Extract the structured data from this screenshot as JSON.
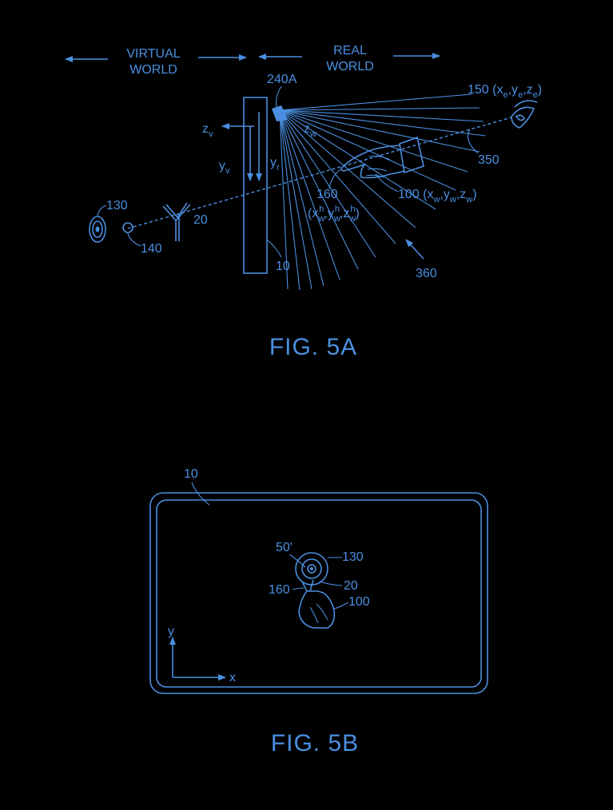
{
  "fig5a": {
    "caption": "FIG. 5A",
    "virtual_world_line1": "VIRTUAL",
    "virtual_world_line2": "WORLD",
    "real_world_line1": "REAL",
    "real_world_line2": "WORLD",
    "ref_240a": "240A",
    "ref_150": "150",
    "eye_coord_open": "(x",
    "eye_sub_e": "e",
    "eye_y": ",y",
    "eye_z": ",z",
    "eye_close": ")",
    "ref_350": "350",
    "ref_360": "360",
    "ref_100": "100",
    "hand_coord_open": "(x",
    "sub_w": "w",
    "hand_y": ",y",
    "hand_z": ",z",
    "hand_close": ")",
    "ref_160": "160",
    "tip_open": "(x",
    "sup_h": "h",
    "tip_y": ",y",
    "tip_z": ",z",
    "tip_close": ")",
    "axis_zv": "z",
    "sub_v": "v",
    "axis_yv": "y",
    "axis_yr": "y",
    "sub_r": "r",
    "axis_zw": "z",
    "ref_130": "130",
    "ref_140": "140",
    "ref_20": "20",
    "ref_10": "10"
  },
  "fig5b": {
    "caption": "FIG. 5B",
    "ref_10": "10",
    "ref_50": "50'",
    "ref_130": "130",
    "ref_20": "20",
    "ref_160": "160",
    "ref_100": "100",
    "axis_x": "x",
    "axis_y": "y"
  },
  "colors": {
    "line": "#4a8fe0",
    "background": "#000000"
  }
}
